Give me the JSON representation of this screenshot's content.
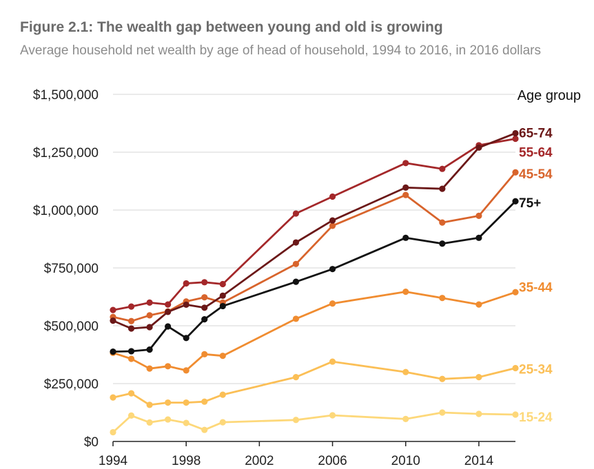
{
  "figure": {
    "title": "Figure 2.1: The wealth gap between young and old is growing",
    "subtitle": "Average household net wealth by age of head of household, 1994 to 2016, in 2016 dollars"
  },
  "chart_data": {
    "type": "line",
    "title": "Figure 2.1: The wealth gap between young and old is growing",
    "subtitle": "Average household net wealth by age of head of household, 1994 to 2016, in 2016 dollars",
    "xlabel": "",
    "ylabel": "",
    "legend_title": "Age group",
    "legend_position": "right",
    "grid": true,
    "xlim": [
      1994,
      2016
    ],
    "ylim": [
      0,
      1500000
    ],
    "x_ticks": [
      1994,
      1998,
      2002,
      2006,
      2010,
      2014
    ],
    "x_tick_labels": [
      "1994",
      "1998",
      "2002",
      "2006",
      "2010",
      "2014"
    ],
    "y_ticks": [
      0,
      250000,
      500000,
      750000,
      1000000,
      1250000,
      1500000
    ],
    "y_tick_labels": [
      "$0",
      "$250,000",
      "$500,000",
      "$750,000",
      "$1,000,000",
      "$1,250,000",
      "$1,500,000"
    ],
    "x": [
      1994,
      1995,
      1996,
      1997,
      1998,
      1999,
      2000,
      2004,
      2006,
      2010,
      2012,
      2014,
      2016
    ],
    "series": [
      {
        "name": "15-24",
        "color": "#fdd87a",
        "values": [
          40000,
          112000,
          82000,
          95000,
          80000,
          50000,
          83000,
          93000,
          113000,
          97000,
          125000,
          119000,
          116000
        ]
      },
      {
        "name": "25-34",
        "color": "#fbbf56",
        "values": [
          190000,
          208000,
          158000,
          168000,
          168000,
          172000,
          202000,
          278000,
          345000,
          300000,
          270000,
          278000,
          317000
        ]
      },
      {
        "name": "35-44",
        "color": "#f08c30",
        "values": [
          383000,
          357000,
          315000,
          325000,
          307000,
          377000,
          370000,
          530000,
          596000,
          647000,
          620000,
          592000,
          645000
        ]
      },
      {
        "name": "45-54",
        "color": "#d8642c",
        "values": [
          538000,
          520000,
          545000,
          562000,
          605000,
          623000,
          600000,
          767000,
          932000,
          1065000,
          946000,
          975000,
          1163000
        ]
      },
      {
        "name": "55-64",
        "color": "#a4282a",
        "values": [
          568000,
          583000,
          600000,
          592000,
          683000,
          688000,
          680000,
          985000,
          1058000,
          1203000,
          1178000,
          1280000,
          1308000
        ]
      },
      {
        "name": "65-74",
        "color": "#6b1818",
        "values": [
          522000,
          488000,
          494000,
          560000,
          591000,
          578000,
          630000,
          860000,
          955000,
          1097000,
          1092000,
          1270000,
          1332000
        ]
      },
      {
        "name": "75+",
        "color": "#111111",
        "values": [
          388000,
          390000,
          397000,
          497000,
          447000,
          528000,
          585000,
          690000,
          745000,
          880000,
          855000,
          880000,
          1038000
        ]
      }
    ]
  }
}
